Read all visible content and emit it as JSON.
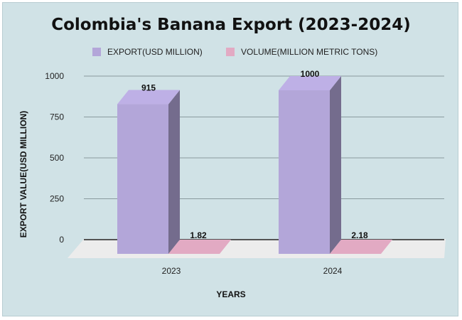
{
  "chart_data": {
    "type": "bar",
    "title": "Colombia's Banana Export (2023-2024)",
    "xlabel": "YEARS",
    "ylabel": "EXPORT VALUE(USD MILLION)",
    "categories": [
      "2023",
      "2024"
    ],
    "ylim": [
      0,
      1000
    ],
    "yticks": [
      "0",
      "250",
      "500",
      "750",
      "1000"
    ],
    "legend_position": "top",
    "grid": true,
    "series": [
      {
        "name": "EXPORT(USD MILLION)",
        "values": [
          915,
          1000
        ],
        "labels": [
          "915",
          "1000"
        ],
        "color": "#b3a6d9"
      },
      {
        "name": "VOLUME(MILLION METRIC TONS)",
        "values": [
          1.82,
          2.18
        ],
        "labels": [
          "1.82",
          "2.18"
        ],
        "color": "#e2aac3"
      }
    ]
  },
  "colors": {
    "background": "#d0e2e6",
    "floor": "#ececec",
    "gridline": "#8a9a9e"
  }
}
